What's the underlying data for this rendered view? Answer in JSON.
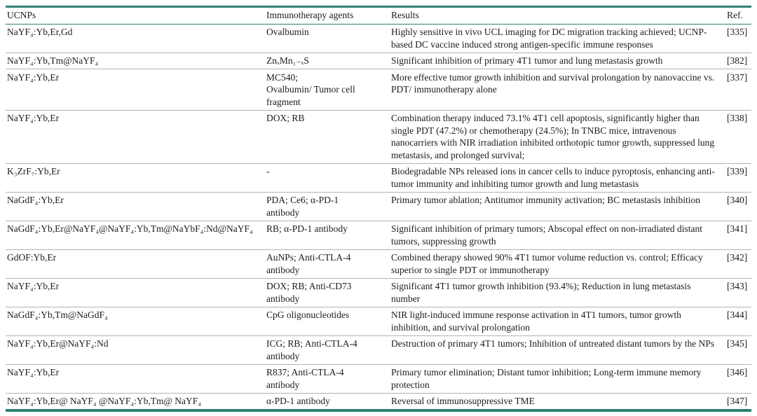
{
  "colors": {
    "accent": "#2f7e72",
    "row_separator": "#b3b3b3",
    "text": "#1c1c1c"
  },
  "table": {
    "headers": [
      "UCNPs",
      "Immunotherapy agents",
      "Results",
      "Ref."
    ],
    "rows": [
      {
        "ucnp": "NaYF₄:Yb,Er,Gd",
        "agents": "Ovalbumin",
        "results": "Highly sensitive in vivo UCL imaging for DC migration tracking achieved; UCNP-based DC vaccine induced strong antigen-specific immune responses",
        "ref": "[335]"
      },
      {
        "ucnp": "NaYF₄:Yb,Tm@NaYF₄",
        "agents": "ZnₓMn₁₋ₓS",
        "results": "Significant inhibition of primary 4T1 tumor and lung metastasis growth",
        "ref": "[382]"
      },
      {
        "ucnp": "NaYF₄:Yb,Er",
        "agents": "MC540;\nOvalbumin/ Tumor cell\nfragment",
        "results": "More effective tumor growth inhibition and survival prolongation by nanovaccine vs. PDT/ immunotherapy alone",
        "ref": "[337]"
      },
      {
        "ucnp": "NaYF₄:Yb,Er",
        "agents": "DOX; RB",
        "results": "Combination therapy induced 73.1% 4T1 cell apoptosis, significantly higher than single PDT (47.2%) or chemotherapy (24.5%); In TNBC mice, intravenous nanocarriers with NIR irradiation inhibited orthotopic tumor growth, suppressed lung metastasis, and prolonged survival;",
        "ref": "[338]"
      },
      {
        "ucnp": "K₃ZrF₇:Yb,Er",
        "agents": "-",
        "results": "Biodegradable NPs released ions in cancer cells to induce pyroptosis, enhancing anti-tumor immunity and inhibiting tumor growth and lung metastasis",
        "ref": "[339]"
      },
      {
        "ucnp": "NaGdF₄:Yb,Er",
        "agents": "PDA; Ce6; α-PD-1\nantibody",
        "results": "Primary tumor ablation; Antitumor immunity activation; BC metastasis inhibition",
        "ref": "[340]"
      },
      {
        "ucnp": "NaGdF₄:Yb,Er@NaYF₄@NaYF₄:Yb,Tm@NaYbF₄:Nd@NaYF₄",
        "agents": "RB; α-PD-1 antibody",
        "results": "Significant inhibition of primary tumors; Abscopal effect on non-irradiated distant tumors, suppressing growth",
        "ref": "[341]"
      },
      {
        "ucnp": "GdOF:Yb,Er",
        "agents": "AuNPs; Anti-CTLA-4\nantibody",
        "results": "Combined therapy showed 90% 4T1 tumor volume reduction vs. control; Efficacy superior to single PDT or immunotherapy",
        "ref": "[342]"
      },
      {
        "ucnp": "NaYF₄:Yb,Er",
        "agents": "DOX; RB; Anti-CD73\nantibody",
        "results": "Significant 4T1 tumor growth inhibition (93.4%); Reduction in lung metastasis number",
        "ref": "[343]"
      },
      {
        "ucnp": "NaGdF₄:Yb,Tm@NaGdF₄",
        "agents": "CpG oligonucleotides",
        "results": "NIR light-induced immune response activation in 4T1 tumors, tumor growth inhibition, and survival prolongation",
        "ref": "[344]"
      },
      {
        "ucnp": "NaYF₄:Yb,Er@NaYF₄:Nd",
        "agents": "ICG; RB; Anti-CTLA-4\nantibody",
        "results": "Destruction of primary 4T1 tumors; Inhibition of untreated distant tumors by the NPs",
        "ref": "[345]"
      },
      {
        "ucnp": "NaYF₄:Yb,Er",
        "agents": "R837; Anti-CTLA-4\nantibody",
        "results": "Primary tumor elimination; Distant tumor inhibition; Long-term immune memory protection",
        "ref": "[346]"
      },
      {
        "ucnp": "NaYF₄:Yb,Er@ NaYF₄ @NaYF₄:Yb,Tm@ NaYF₄",
        "agents": "α-PD-1 antibody",
        "results": "Reversal of immunosuppressive TME",
        "ref": "[347]"
      }
    ]
  }
}
